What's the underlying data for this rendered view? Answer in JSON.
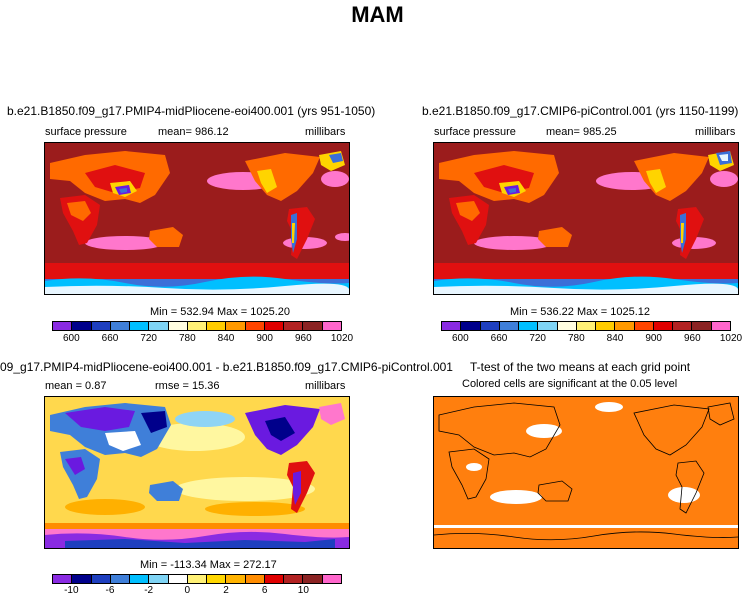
{
  "page_title": "MAM",
  "panels": {
    "top_left": {
      "title": "b.e21.B1850.f09_g17.PMIP4-midPliocene-eoi400.001 (yrs 951-1050)",
      "variable": "surface pressure",
      "mean_label": "mean= 986.12",
      "units": "millibars",
      "minmax": "Min = 532.94 Max = 1025.20"
    },
    "top_right": {
      "title": "b.e21.B1850.f09_g17.CMIP6-piControl.001 (yrs 1150-1199)",
      "variable": "surface pressure",
      "mean_label": "mean= 985.25",
      "units": "millibars",
      "minmax": "Min = 536.22 Max = 1025.12"
    },
    "bottom_left": {
      "title": "09_g17.PMIP4-midPliocene-eoi400.001 - b.e21.B1850.f09_g17.CMIP6-piControl.001",
      "mean_label": "mean =   0.87",
      "rmse_label": "rmse =  15.36",
      "units": "millibars",
      "minmax": "Min = -113.34 Max = 272.17"
    },
    "bottom_right": {
      "title": "T-test of the two means at each grid point",
      "subtitle": "Colored cells are significant at the 0.05 level"
    }
  },
  "colorbars": {
    "pressure": {
      "colors": [
        "#8a2be2",
        "#00008b",
        "#1e3fbf",
        "#3f7fd9",
        "#00bfff",
        "#7fd4f5",
        "#fffde0",
        "#fff176",
        "#ffcc00",
        "#ff9900",
        "#ff4500",
        "#e00000",
        "#b22222",
        "#8b2323",
        "#ff66cc"
      ],
      "labels": [
        "600",
        "660",
        "720",
        "780",
        "840",
        "900",
        "960",
        "1020"
      ]
    },
    "diff": {
      "colors": [
        "#8a2be2",
        "#00008b",
        "#1e3fbf",
        "#3f7fd9",
        "#00bfff",
        "#7fd4f5",
        "#ffffff",
        "#fff176",
        "#ffd700",
        "#ffb300",
        "#ff8c00",
        "#e00000",
        "#b22222",
        "#8b2323",
        "#ff66cc"
      ],
      "labels": [
        "-10",
        "-6",
        "-2",
        "0",
        "2",
        "6",
        "10"
      ]
    }
  },
  "map_colors": {
    "ocean_high": "#9b1c1c",
    "high_pressure_cell": "#ff77cc",
    "southern_band": "#e01010",
    "land_mid": "#ff6a00",
    "land_high": "#ffd400",
    "land_low": "#3b6fd8",
    "land_vlow": "#6a1ae0",
    "antarctica": "#00bfff",
    "diff_base": "#ffd84d",
    "diff_warm": "#ffb000",
    "diff_cool": "#8fd4f5",
    "significant": "#ff7f0e"
  }
}
